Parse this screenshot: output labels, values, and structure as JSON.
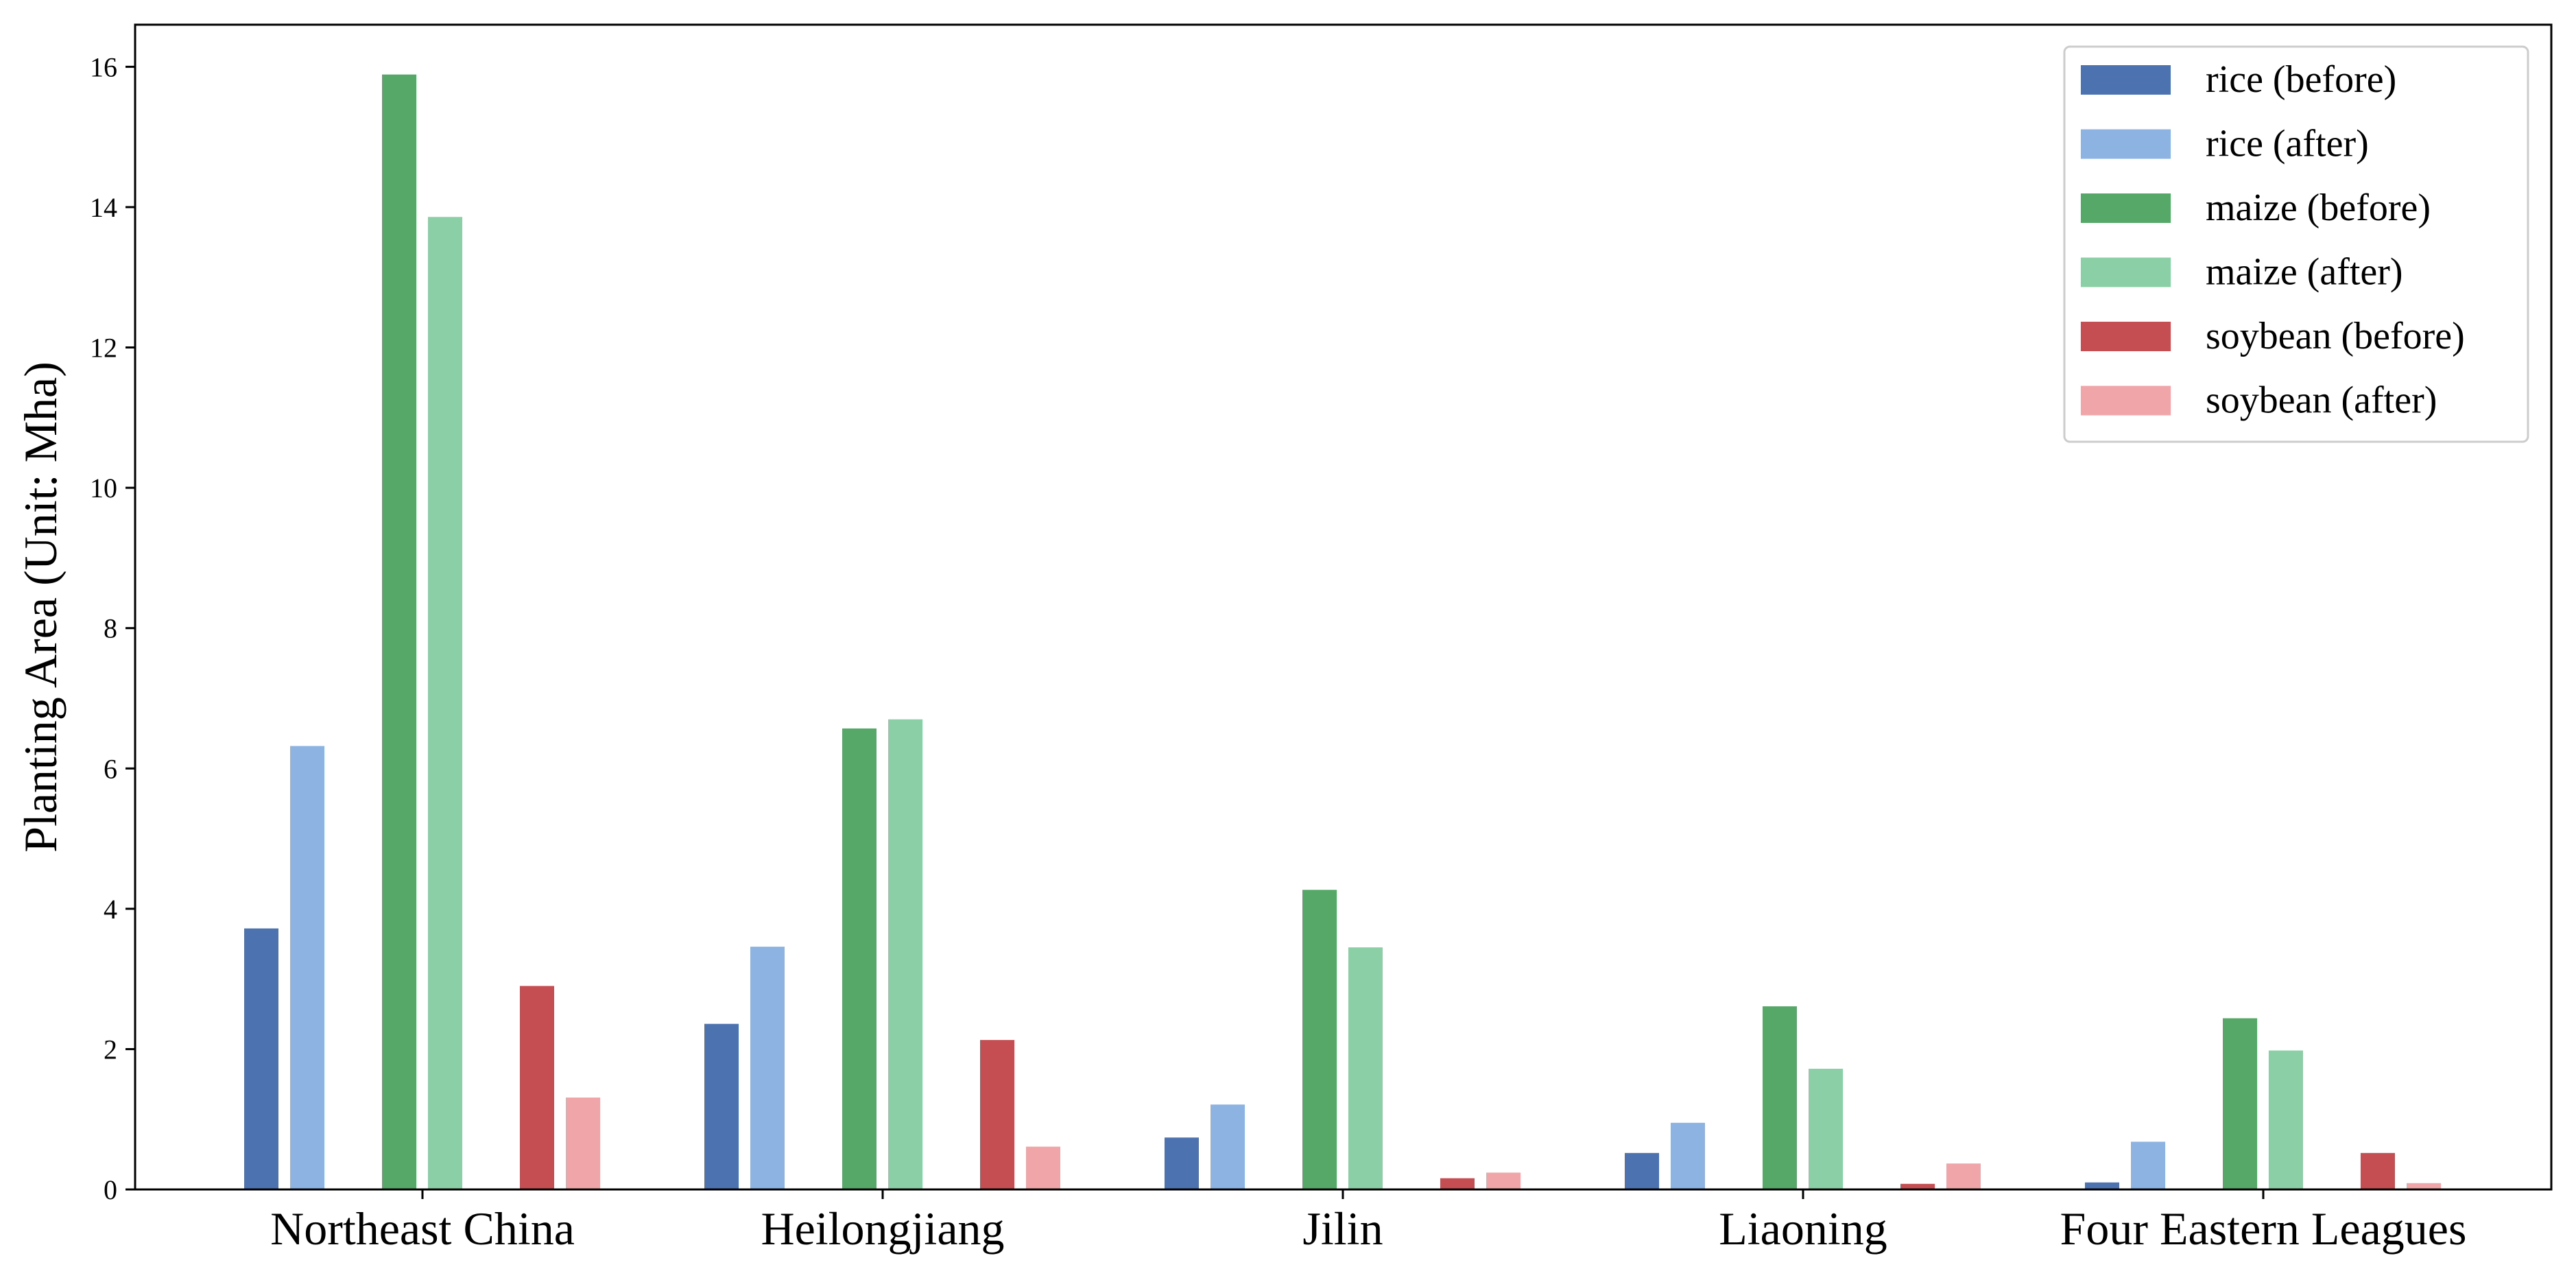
{
  "chart_data": {
    "type": "bar",
    "title": "",
    "xlabel": "",
    "ylabel": "Planting Area (Unit: Mha)",
    "ylim": [
      0,
      16.6
    ],
    "yticks": [
      0,
      2,
      4,
      6,
      8,
      10,
      12,
      14,
      16
    ],
    "grid": false,
    "legend_position": "top-right",
    "categories": [
      "Northeast China",
      "Heilongjiang",
      "Jilin",
      "Liaoning",
      "Four Eastern Leagues"
    ],
    "series": [
      {
        "name": "rice (before)",
        "color": "#4c72b0",
        "values": [
          3.72,
          2.36,
          0.74,
          0.52,
          0.1
        ]
      },
      {
        "name": "rice (after)",
        "color": "#8db3e2",
        "values": [
          6.32,
          3.46,
          1.21,
          0.95,
          0.68
        ]
      },
      {
        "name": "maize (before)",
        "color": "#55a868",
        "values": [
          15.89,
          6.57,
          4.27,
          2.61,
          2.44
        ]
      },
      {
        "name": "maize (after)",
        "color": "#8bcfa6",
        "values": [
          13.86,
          6.7,
          3.45,
          1.72,
          1.98
        ]
      },
      {
        "name": "soybean (before)",
        "color": "#c44e52",
        "values": [
          2.9,
          2.13,
          0.16,
          0.08,
          0.52
        ]
      },
      {
        "name": "soybean (after)",
        "color": "#f0a6a8",
        "values": [
          1.31,
          0.61,
          0.24,
          0.37,
          0.09
        ]
      }
    ]
  }
}
